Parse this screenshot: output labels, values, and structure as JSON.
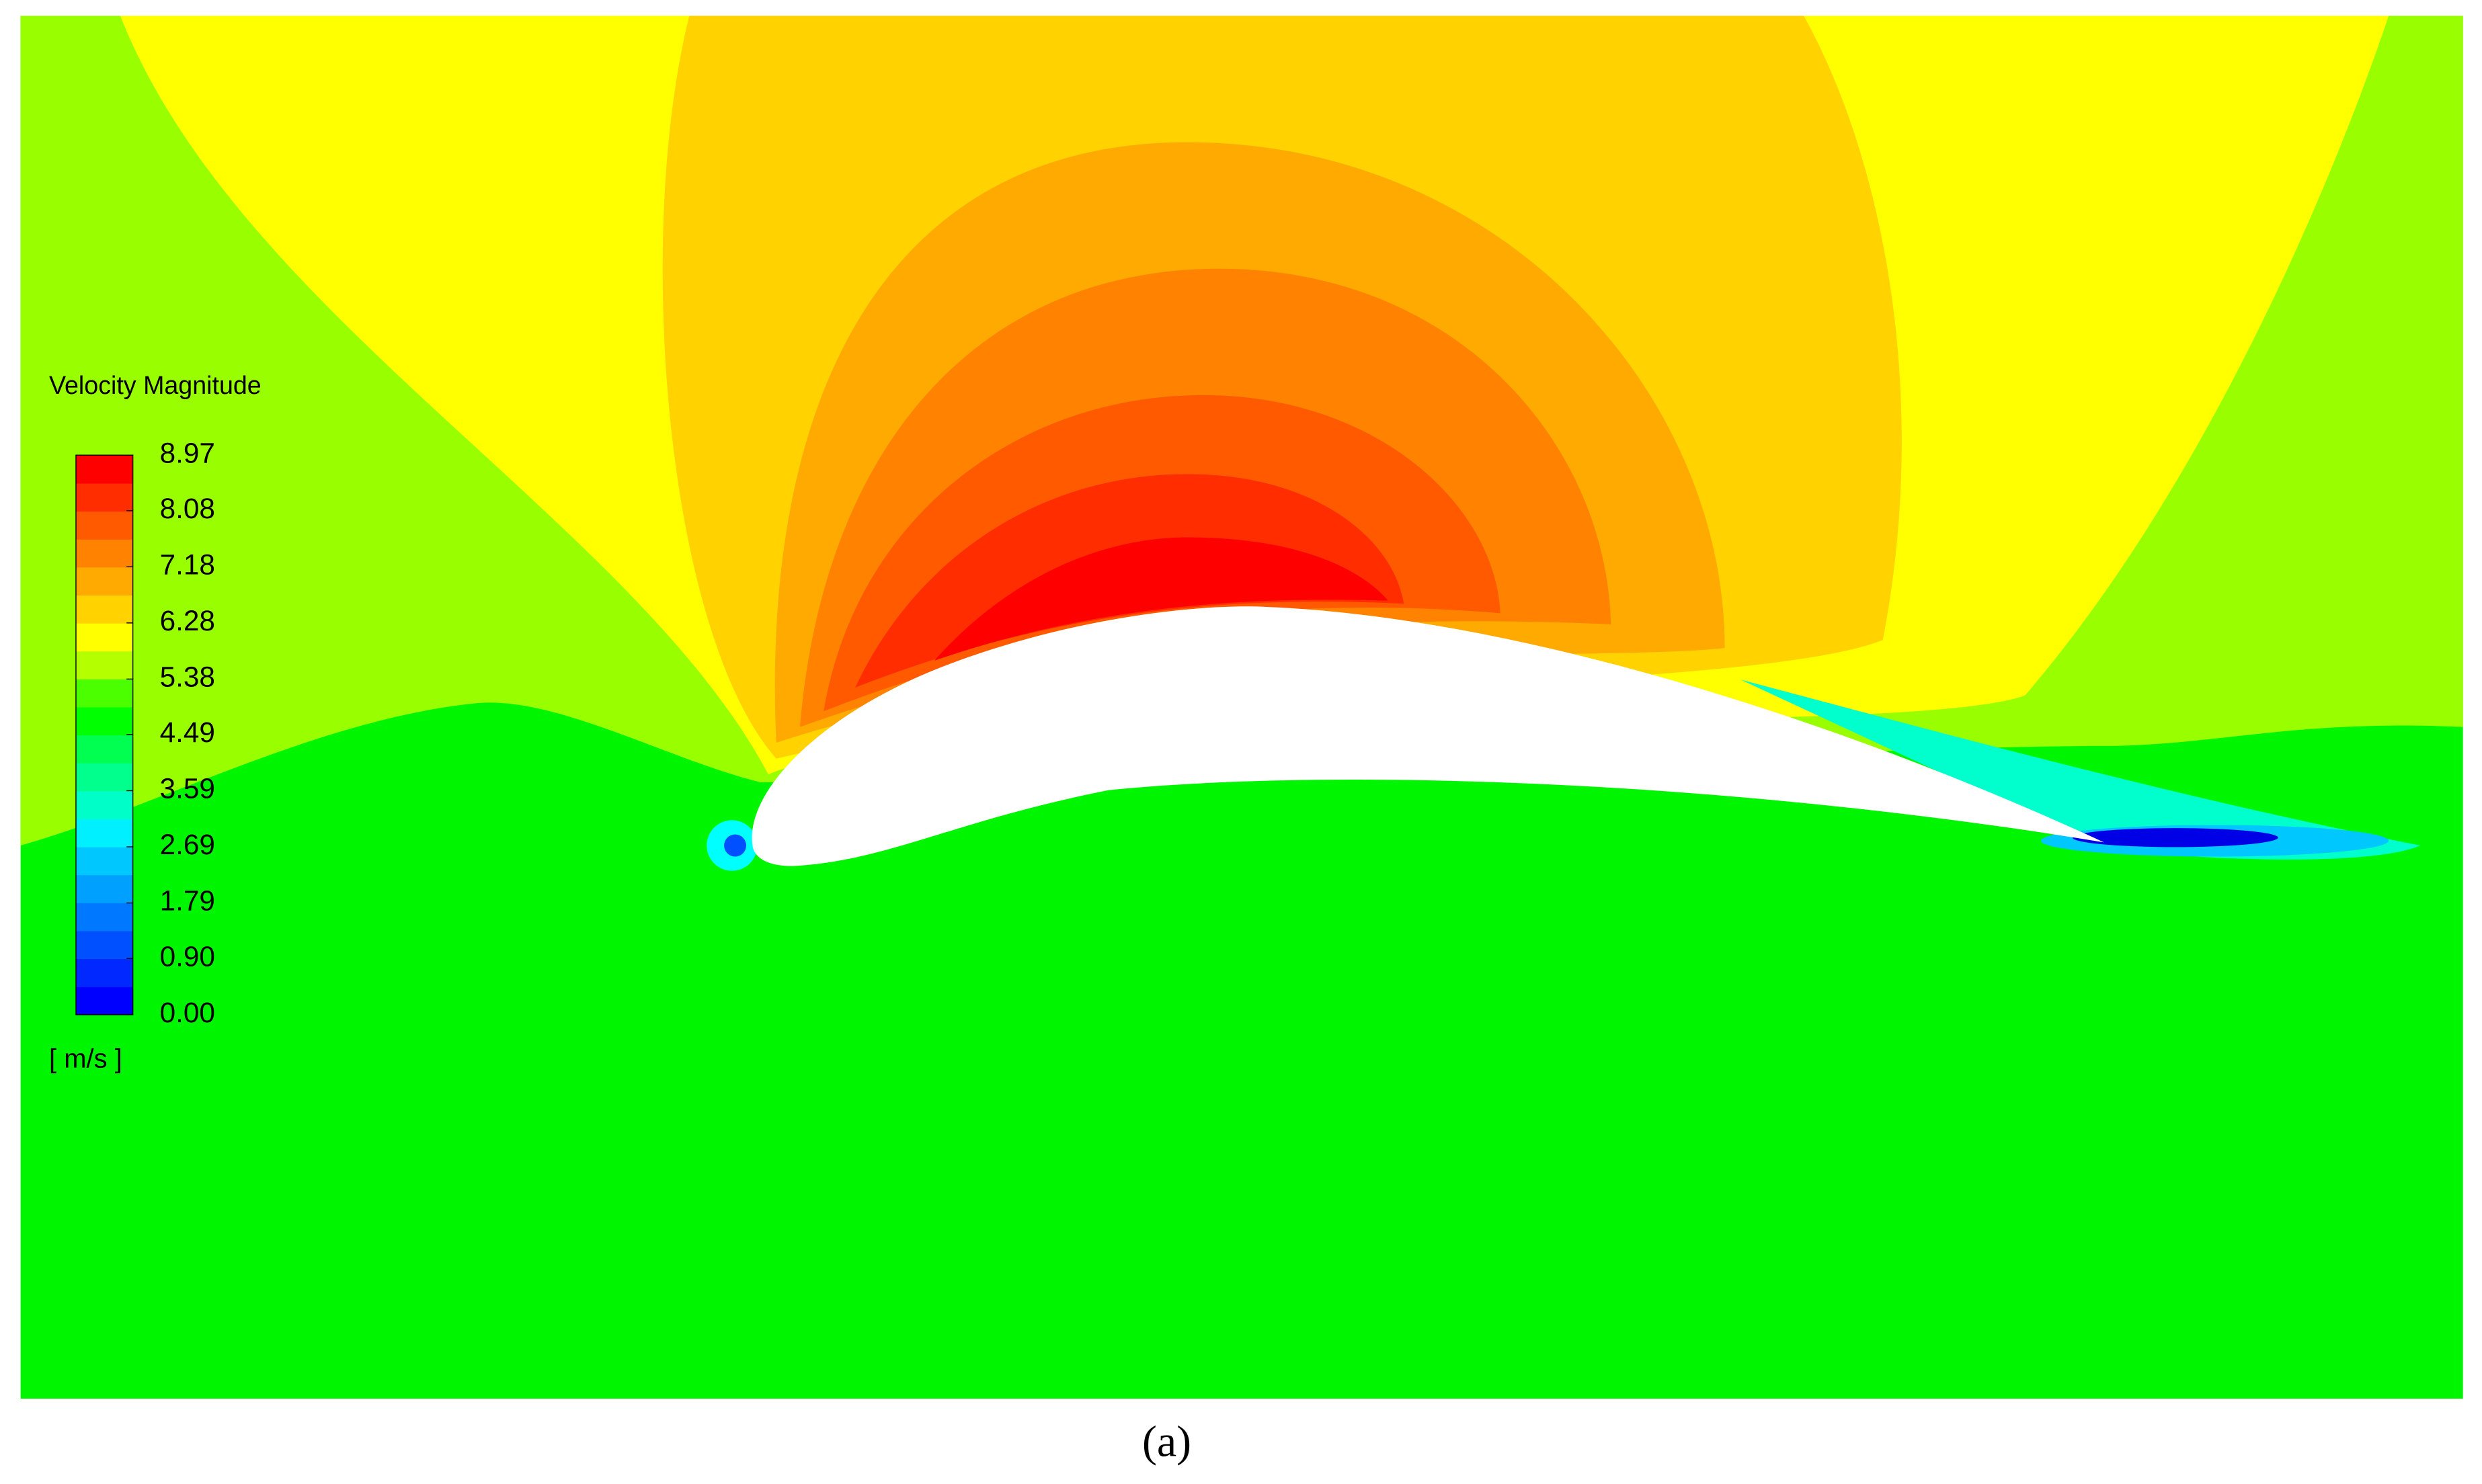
{
  "chart_data": {
    "type": "contour",
    "legend_title": "Velocity Magnitude",
    "unit": "[ m/s ]",
    "caption": "(a)",
    "clim": [
      0,
      8.97
    ],
    "colorbar_ticks": [
      {
        "value": 0,
        "label": "0.00"
      },
      {
        "value": 0.9,
        "label": "0.90"
      },
      1.79,
      2.69,
      3.59,
      4.49,
      5.38,
      6.28,
      7.18,
      8.08,
      8.97
    ],
    "colorbar_colors": [
      "#0000ff",
      "#0028ff",
      "#0050ff",
      "#0078ff",
      "#00a0ff",
      "#00c8ff",
      "#00f0ff",
      "#00ffc8",
      "#00ff8c",
      "#00ff50",
      "#00ff00",
      "#4cff00",
      "#b4ff00",
      "#ffff00",
      "#ffd200",
      "#ffaa00",
      "#ff8200",
      "#ff5a00",
      "#ff2d00",
      "#ff0000"
    ]
  }
}
